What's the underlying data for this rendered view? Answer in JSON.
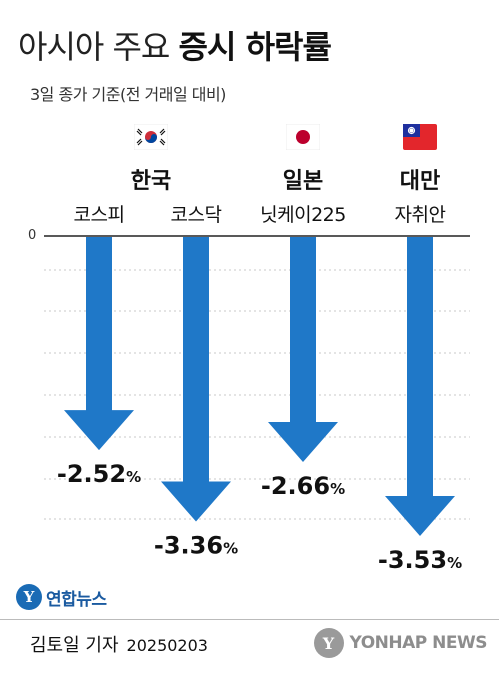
{
  "header": {
    "title_light": "아시아 주요",
    "title_bold": "증시 하락률",
    "subtitle": "3일 종가 기준(전 거래일 대비)"
  },
  "chart_data": {
    "type": "bar",
    "title": "아시아 주요 증시 하락률",
    "subtitle": "3일 종가 기준(전 거래일 대비)",
    "categories": [
      "코스피",
      "코스닥",
      "닛케이225",
      "자취안"
    ],
    "groups": [
      {
        "country": "한국",
        "flag": "korea-flag-icon",
        "indices": [
          "코스피",
          "코스닥"
        ]
      },
      {
        "country": "일본",
        "flag": "japan-flag-icon",
        "indices": [
          "닛케이225"
        ]
      },
      {
        "country": "대만",
        "flag": "taiwan-flag-icon",
        "indices": [
          "자취안"
        ]
      }
    ],
    "values": [
      -2.52,
      -3.36,
      -2.66,
      -3.53
    ],
    "data_labels": [
      "-2.52",
      "-3.36",
      "-2.66",
      "-3.53"
    ],
    "unit": "%",
    "axis_zero_label": "0",
    "ylim": [
      -3.53,
      0
    ],
    "grid": true,
    "colors": {
      "arrow": "#1f78c8",
      "grid": "#c8c8c8",
      "axis": "#222222"
    }
  },
  "footer": {
    "logo_mark": "Y",
    "logo_text": "연합뉴스",
    "byline": "김토일 기자",
    "date": "20250203",
    "watermark": "YONHAP NEWS"
  }
}
